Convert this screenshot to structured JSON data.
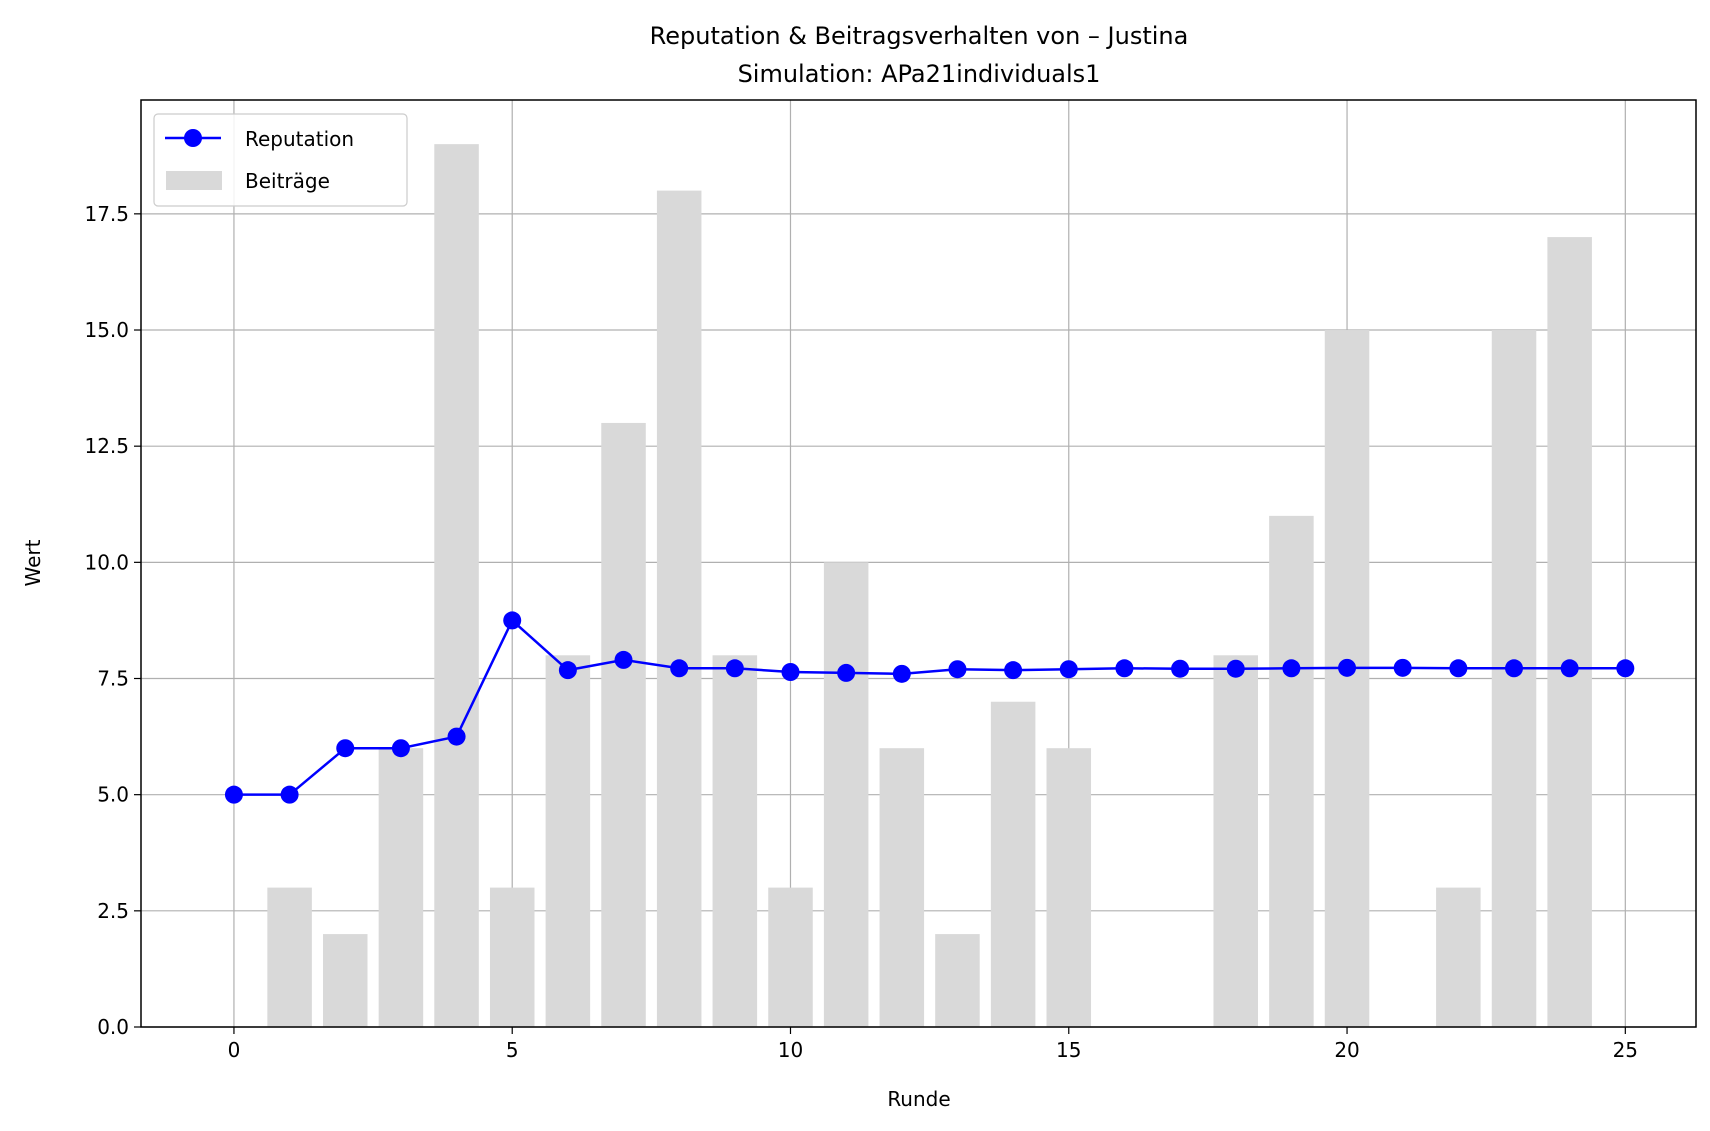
{
  "chart_data": {
    "type": "bar+line",
    "title": "Reputation & Beitragsverhalten von – Justina",
    "subtitle": "Simulation: APa21individuals1",
    "xlabel": "Runde",
    "ylabel": "Wert",
    "xlim": [
      -1.67,
      26.27
    ],
    "ylim": [
      0,
      19.95
    ],
    "xticks": [
      0,
      5,
      10,
      15,
      20,
      25
    ],
    "xtick_labels": [
      "0",
      "5",
      "10",
      "15",
      "20",
      "25"
    ],
    "yticks": [
      0,
      2.5,
      5,
      7.5,
      10,
      12.5,
      15,
      17.5
    ],
    "ytick_labels": [
      "0.0",
      "2.5",
      "5.0",
      "7.5",
      "10.0",
      "12.5",
      "15.0",
      "17.5"
    ],
    "grid": true,
    "legend_position": "top-left",
    "x": [
      0,
      1,
      2,
      3,
      4,
      5,
      6,
      7,
      8,
      9,
      10,
      11,
      12,
      13,
      14,
      15,
      16,
      17,
      18,
      19,
      20,
      21,
      22,
      23,
      24,
      25
    ],
    "series": [
      {
        "name": "Reputation",
        "kind": "line",
        "color": "#0000ff",
        "marker": "circle",
        "values": [
          5.0,
          5.0,
          6.0,
          6.0,
          6.25,
          8.75,
          7.68,
          7.9,
          7.72,
          7.72,
          7.64,
          7.62,
          7.6,
          7.7,
          7.68,
          7.7,
          7.72,
          7.71,
          7.71,
          7.72,
          7.73,
          7.73,
          7.72,
          7.72,
          7.72,
          7.72
        ]
      },
      {
        "name": "Beiträge",
        "kind": "bar",
        "color": "#d9d9d9",
        "values": [
          0,
          3,
          2,
          6,
          19,
          3,
          8,
          13,
          18,
          8,
          3,
          10,
          6,
          2,
          7,
          6,
          0,
          0,
          8,
          11,
          15,
          0,
          3,
          15,
          17,
          0
        ]
      }
    ]
  }
}
